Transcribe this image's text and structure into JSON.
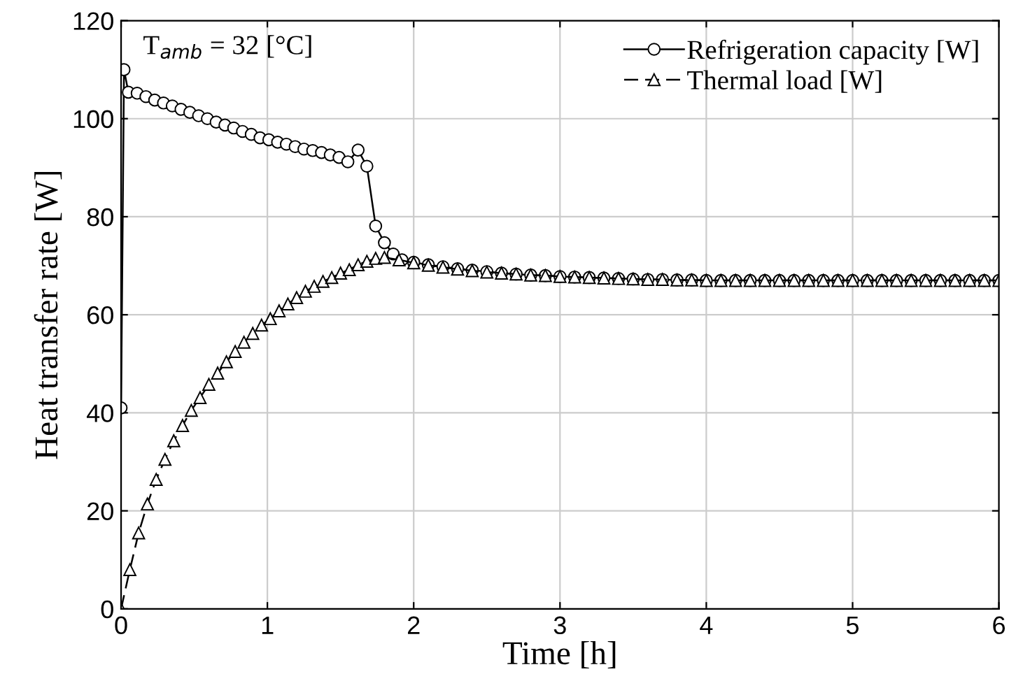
{
  "chart_data": {
    "type": "line",
    "xlabel": "Time [h]",
    "ylabel": "Heat transfer rate [W]",
    "annotations": [
      "T$_{amb}$ = 32 [°C]"
    ],
    "xlim": [
      0,
      6
    ],
    "xticks": [
      0,
      1,
      2,
      3,
      4,
      5,
      6
    ],
    "ylim": [
      0,
      120
    ],
    "yticks": [
      0,
      20,
      40,
      60,
      80,
      100,
      120
    ],
    "grid": true,
    "legend": "top right",
    "series": [
      {
        "name": "Refrigeration capacity [W]",
        "color": "#000000",
        "marker": "circle",
        "line_style": "solid",
        "x": [
          0,
          0.02,
          0.05,
          0.11,
          0.17,
          0.23,
          0.29,
          0.35,
          0.41,
          0.47,
          0.53,
          0.59,
          0.65,
          0.71,
          0.77,
          0.83,
          0.89,
          0.95,
          1.01,
          1.07,
          1.13,
          1.19,
          1.25,
          1.31,
          1.37,
          1.43,
          1.49,
          1.55,
          1.62,
          1.68,
          1.74,
          1.8,
          1.86,
          1.92,
          2.0,
          2.1,
          2.2,
          2.3,
          2.4,
          2.5,
          2.6,
          2.7,
          2.8,
          2.9,
          3.0,
          3.1,
          3.2,
          3.3,
          3.4,
          3.5,
          3.6,
          3.7,
          3.8,
          3.9,
          4.0,
          4.1,
          4.2,
          4.3,
          4.4,
          4.5,
          4.6,
          4.7,
          4.8,
          4.9,
          5.0,
          5.1,
          5.2,
          5.3,
          5.4,
          5.5,
          5.6,
          5.7,
          5.8,
          5.9,
          6.0
        ],
        "values": [
          41,
          110,
          105.4,
          105.2,
          104.5,
          103.8,
          103.2,
          102.6,
          101.9,
          101.3,
          100.6,
          100.0,
          99.3,
          98.7,
          98.1,
          97.4,
          96.8,
          96.1,
          95.7,
          95.2,
          94.8,
          94.3,
          93.8,
          93.5,
          93.1,
          92.6,
          92.1,
          91.2,
          93.6,
          90.3,
          78.1,
          74.7,
          72.4,
          71.2,
          70.7,
          70.2,
          69.8,
          69.4,
          69.1,
          68.8,
          68.5,
          68.3,
          68.1,
          68.0,
          67.8,
          67.7,
          67.6,
          67.5,
          67.4,
          67.3,
          67.2,
          67.2,
          67.1,
          67.1,
          67.0,
          67.0,
          67.0,
          67.0,
          67.0,
          67.0,
          67.0,
          67.0,
          67.0,
          67.0,
          67.0,
          67.0,
          67.0,
          67.0,
          67.0,
          67.0,
          67.0,
          67.0,
          67.0,
          67.0,
          67.0
        ]
      },
      {
        "name": "Thermal load [W]",
        "color": "#000000",
        "marker": "triangle",
        "line_style": "dashed",
        "x": [
          0,
          0.06,
          0.12,
          0.18,
          0.24,
          0.3,
          0.36,
          0.42,
          0.48,
          0.54,
          0.6,
          0.66,
          0.72,
          0.78,
          0.84,
          0.9,
          0.96,
          1.02,
          1.08,
          1.14,
          1.2,
          1.26,
          1.32,
          1.38,
          1.44,
          1.5,
          1.56,
          1.62,
          1.68,
          1.74,
          1.8,
          1.9,
          2.0,
          2.1,
          2.2,
          2.3,
          2.4,
          2.5,
          2.6,
          2.7,
          2.8,
          2.9,
          3.0,
          3.1,
          3.2,
          3.3,
          3.4,
          3.5,
          3.6,
          3.7,
          3.8,
          3.9,
          4.0,
          4.1,
          4.2,
          4.3,
          4.4,
          4.5,
          4.6,
          4.7,
          4.8,
          4.9,
          5.0,
          5.1,
          5.2,
          5.3,
          5.4,
          5.5,
          5.6,
          5.7,
          5.8,
          5.9,
          6.0
        ],
        "values": [
          0,
          8,
          15.5,
          21.4,
          26.4,
          30.5,
          34.3,
          37.4,
          40.5,
          43.1,
          45.8,
          48.1,
          50.4,
          52.5,
          54.4,
          56.2,
          57.9,
          59.2,
          60.8,
          62.2,
          63.5,
          64.8,
          65.8,
          66.8,
          67.6,
          68.5,
          69.2,
          70.2,
          70.9,
          71.5,
          71.7,
          71.2,
          70.6,
          70.1,
          69.7,
          69.3,
          69.0,
          68.7,
          68.5,
          68.3,
          68.1,
          68.0,
          67.8,
          67.7,
          67.6,
          67.5,
          67.4,
          67.3,
          67.2,
          67.2,
          67.1,
          67.1,
          67.0,
          67.0,
          67.0,
          67.0,
          67.0,
          67.0,
          67.0,
          67.0,
          67.0,
          67.0,
          67.0,
          67.0,
          67.0,
          67.0,
          67.0,
          67.0,
          67.0,
          67.0,
          67.0,
          67.0,
          67.0
        ]
      }
    ]
  }
}
